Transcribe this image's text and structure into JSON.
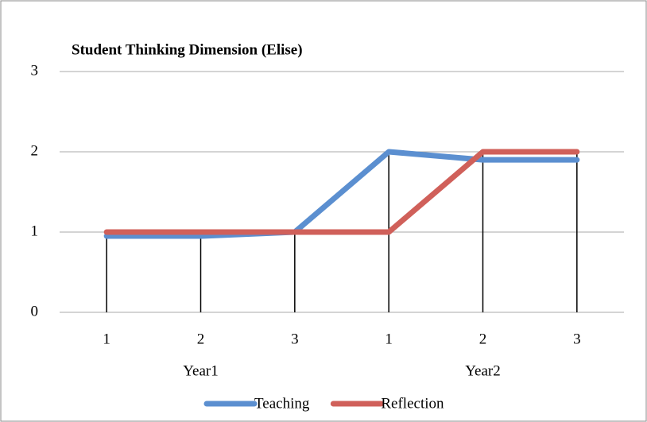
{
  "chart_data": {
    "type": "line",
    "title": "Student Thinking Dimension (Elise)",
    "categories": [
      "1",
      "2",
      "3",
      "1",
      "2",
      "3"
    ],
    "groups": [
      "Year1",
      "Year2"
    ],
    "series": [
      {
        "name": "Teaching",
        "color": "#5b8fd0",
        "values": [
          0.95,
          0.95,
          1,
          2,
          1.9,
          1.9
        ]
      },
      {
        "name": "Reflection",
        "color": "#d0605a",
        "values": [
          1,
          1,
          1,
          1,
          2,
          2
        ]
      }
    ],
    "ylim": [
      0,
      3
    ],
    "yticks": [
      0,
      1,
      2,
      3
    ],
    "grid": true,
    "legend": "bottom"
  }
}
